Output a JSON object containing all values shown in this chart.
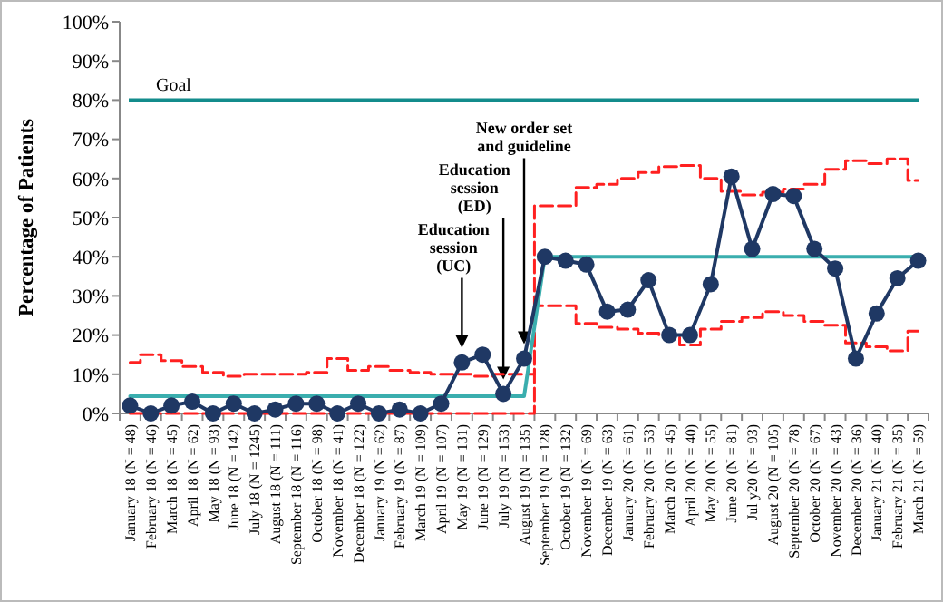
{
  "chart_data": {
    "type": "line",
    "ylabel": "Percentage of Patients",
    "categories": [
      "January 18 (N = 48)",
      "February 18 (N = 46)",
      "March 18 (N = 45)",
      "April 18 (N = 62)",
      "May 18 (N = 93)",
      "June 18 (N = 142)",
      "July 18 (N = 1245)",
      "August 18 (N = 111)",
      "September 18 (N = 116)",
      "October 18 (N = 98)",
      "November 18 (N = 41)",
      "December 18 (N = 122)",
      "January 19 (N = 62)",
      "February 19 (N = 87)",
      "March 19 (N = 109)",
      "April 19 (N = 107)",
      "May 19 (N = 131)",
      "June 19 (N = 129)",
      "July 19 (N = 153)",
      "August 19 (N = 135)",
      "September 19 (N = 128)",
      "October 19 (N = 132)",
      "November 19 (N = 69)",
      "December 19 (N = 63)",
      "January 20 (N = 61)",
      "February 20 (N = 53)",
      "March 20 (N = 45)",
      "April 20 (N = 40)",
      "May 20 (N = 55)",
      "June 20 (N = 81)",
      "Jul y20 (N = 93)",
      "August 20 (N = 105)",
      "September 20 (N = 78)",
      "October 20 (N = 67)",
      "November 20 (N = 43)",
      "December 20 (N = 36)",
      "January 21 (N = 40)",
      "February 21 (N = 35)",
      "March 21 (N = 59)"
    ],
    "series": [
      {
        "type": "step",
        "color": "#ff2020",
        "line_style": "dashed",
        "marker": "none",
        "values": [
          13,
          15,
          13.5,
          12,
          10.5,
          9.5,
          10,
          10,
          10,
          10.5,
          14,
          11,
          12,
          11,
          10.5,
          10,
          10,
          9.5,
          10,
          10,
          53,
          53,
          57.7,
          58.5,
          60,
          61.5,
          63,
          63.3,
          60,
          56.7,
          55.8,
          56.5,
          57.3,
          58.5,
          62.3,
          64.5,
          63.8,
          65,
          59.5
        ]
      },
      {
        "type": "step",
        "color": "#ff2020",
        "line_style": "dashed",
        "marker": "none",
        "values": [
          0,
          0,
          0,
          0,
          0,
          0,
          0,
          0,
          0,
          0,
          0,
          0,
          0,
          0,
          0,
          0,
          0,
          0,
          0,
          0,
          27.5,
          27.5,
          23,
          22,
          21.5,
          20.5,
          20,
          17.5,
          21.5,
          23.5,
          24.5,
          26,
          25,
          23.5,
          22.5,
          18,
          17,
          16,
          21
        ]
      },
      {
        "type": "line",
        "color": "#3aaeae",
        "line_style": "solid",
        "marker": "none",
        "values": [
          4.4,
          4.4,
          4.4,
          4.4,
          4.4,
          4.4,
          4.4,
          4.4,
          4.4,
          4.4,
          4.4,
          4.4,
          4.4,
          4.4,
          4.4,
          4.4,
          4.4,
          4.4,
          4.4,
          4.4,
          40,
          40,
          40,
          40,
          40,
          40,
          40,
          40,
          40,
          40,
          40,
          40,
          40,
          40,
          40,
          40,
          40,
          40,
          40
        ]
      },
      {
        "color": "#1f3864",
        "line_style": "solid",
        "marker": "circle",
        "values": [
          2,
          0,
          2,
          3,
          0,
          2.5,
          0,
          1,
          2.5,
          2.5,
          0,
          2.5,
          0,
          1,
          0,
          2.5,
          13,
          15,
          5,
          14,
          40,
          39,
          38,
          26,
          26.5,
          34,
          20,
          20,
          33,
          60.5,
          42,
          56,
          55.5,
          42,
          37,
          14,
          25.5,
          34.5,
          39
        ]
      }
    ],
    "ylim": [
      0,
      100
    ],
    "yticks": [
      {
        "value": 0,
        "label": "0%"
      },
      {
        "value": 10,
        "label": "10%"
      },
      {
        "value": 20,
        "label": "20%"
      },
      {
        "value": 30,
        "label": "30%"
      },
      {
        "value": 40,
        "label": "40%"
      },
      {
        "value": 50,
        "label": "50%"
      },
      {
        "value": 60,
        "label": "60%"
      },
      {
        "value": 70,
        "label": "70%"
      },
      {
        "value": 80,
        "label": "80%"
      },
      {
        "value": 90,
        "label": "90%"
      },
      {
        "value": 100,
        "label": "100%"
      }
    ],
    "ref_lines": [
      {
        "axis": "y",
        "value": 80,
        "label": "Goal",
        "color": "#138c8c"
      }
    ],
    "annotations": [
      "Education\nsession\n(UC)",
      "Education\nsession\n(ED)",
      "New order set\nand guideline"
    ]
  }
}
